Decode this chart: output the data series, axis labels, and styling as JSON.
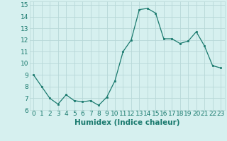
{
  "x": [
    0,
    1,
    2,
    3,
    4,
    5,
    6,
    7,
    8,
    9,
    10,
    11,
    12,
    13,
    14,
    15,
    16,
    17,
    18,
    19,
    20,
    21,
    22,
    23
  ],
  "y": [
    9.0,
    8.0,
    7.0,
    6.5,
    7.3,
    6.8,
    6.7,
    6.8,
    6.4,
    7.1,
    8.5,
    11.0,
    12.0,
    14.6,
    14.7,
    14.3,
    12.1,
    12.1,
    11.7,
    11.9,
    12.7,
    11.5,
    9.8,
    9.6
  ],
  "xlabel": "Humidex (Indice chaleur)",
  "ylabel": "",
  "xlim": [
    -0.5,
    23.5
  ],
  "ylim": [
    6.0,
    15.3
  ],
  "yticks": [
    6,
    7,
    8,
    9,
    10,
    11,
    12,
    13,
    14,
    15
  ],
  "xticks": [
    0,
    1,
    2,
    3,
    4,
    5,
    6,
    7,
    8,
    9,
    10,
    11,
    12,
    13,
    14,
    15,
    16,
    17,
    18,
    19,
    20,
    21,
    22,
    23
  ],
  "line_color": "#1a7a6e",
  "marker_color": "#1a7a6e",
  "bg_color": "#d6f0ef",
  "grid_color": "#b8d8d8",
  "xlabel_color": "#1a7a6e",
  "tick_color": "#1a7a6e",
  "xlabel_fontsize": 7.5,
  "tick_fontsize": 6.5
}
